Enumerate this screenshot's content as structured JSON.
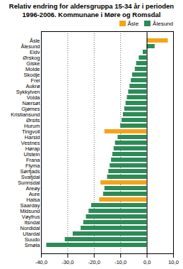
{
  "chart_data": {
    "type": "bar",
    "orientation": "horizontal",
    "stacked": true,
    "title": "Relativ endring for aldersgruppa 15-34 år i perioden\n1996-2006.  Kommunane i Møre og Romsdal",
    "categories": [
      "Åsle",
      "Ålesund",
      "Eidv",
      "Ørskog",
      "Giske",
      "Molde",
      "Skodje",
      "Frei",
      "Aukrø",
      "Sykkylven",
      "Volda",
      "Nærsøt",
      "Gjømes",
      "Kristiansund",
      "Ørsits",
      "Hurum",
      "Tingvoll",
      "Harsid",
      "Vestnes",
      "Hørap",
      "Ulstein",
      "Frana",
      "Flyma",
      "Sørfjads",
      "Svafjdal",
      "Sunnsdal",
      "Areøy",
      "Aure",
      "Halsa",
      "Saarday",
      "Midsund",
      "Vøyfrus",
      "Itsndal",
      "Nordidal",
      "Utardal",
      "Suudo",
      "Smøla"
    ],
    "series": [
      {
        "name": "Åsle",
        "color": "#f5a31a",
        "values": [
          8.0,
          null,
          null,
          null,
          null,
          null,
          null,
          null,
          null,
          null,
          null,
          null,
          null,
          null,
          null,
          null,
          -16.0,
          null,
          null,
          null,
          null,
          null,
          null,
          null,
          null,
          -17.5,
          null,
          null,
          -18.0,
          null,
          null,
          null,
          null,
          null,
          null,
          null,
          null
        ]
      },
      {
        "name": "Ålesund",
        "color": "#2d8b57",
        "values": [
          null,
          3.0,
          -1.5,
          -3.0,
          -4.0,
          -4.5,
          -5.5,
          -6.0,
          -6.5,
          -7.0,
          -7.5,
          -8.0,
          -8.5,
          -9.0,
          -9.5,
          -10.0,
          null,
          -11.0,
          -12.0,
          -12.5,
          -13.0,
          -13.5,
          -14.0,
          -14.5,
          -15.0,
          null,
          -16.0,
          -16.5,
          null,
          -21.0,
          -22.0,
          -23.0,
          -24.0,
          -25.0,
          -28.0,
          -31.0,
          -38.0
        ]
      }
    ],
    "xlim": [
      -40.0,
      10.0
    ],
    "xticks": [
      {
        "value": -40.0,
        "label": "-40,0"
      },
      {
        "value": -30.0,
        "label": "-30,0"
      },
      {
        "value": -20.0,
        "label": "-20,0"
      },
      {
        "value": -10.0,
        "label": "-10,0"
      },
      {
        "value": 0.0,
        "label": "0,0"
      },
      {
        "value": 10.0,
        "label": "10,0"
      }
    ],
    "grid": true,
    "legend": "upper right"
  }
}
